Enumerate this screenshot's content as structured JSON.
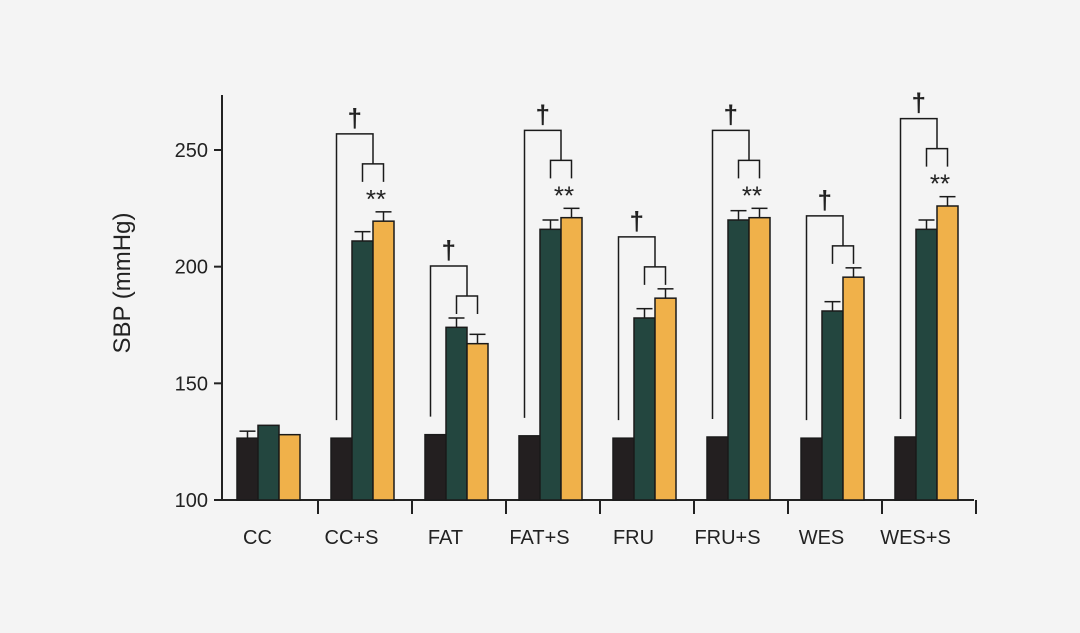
{
  "chart_data": {
    "type": "bar",
    "ylabel": "SBP (mmHg)",
    "xlabel": "",
    "title": "",
    "ylim": [
      100,
      275
    ],
    "yticks": [
      100,
      150,
      200,
      250
    ],
    "categories": [
      "CC",
      "CC+S",
      "FAT",
      "FAT+S",
      "FRU",
      "FRU+S",
      "WES",
      "WES+S"
    ],
    "series": [
      {
        "color": "#231f20",
        "values": [
          126.5,
          126.5,
          128,
          127.5,
          126.5,
          127,
          126.5,
          127
        ],
        "errors": [
          3,
          0,
          0,
          0,
          0,
          0,
          0,
          0
        ]
      },
      {
        "color": "#23463f",
        "values": [
          132,
          211,
          174,
          216,
          178,
          220,
          181,
          216
        ],
        "errors": [
          0,
          4,
          4,
          4,
          4,
          4,
          4,
          4
        ]
      },
      {
        "color": "#f0b14a",
        "values": [
          128,
          219.5,
          167,
          221,
          186.5,
          221,
          195.5,
          226
        ],
        "errors": [
          0,
          4,
          4,
          4,
          4,
          4,
          4,
          4
        ]
      }
    ],
    "annotations": {
      "dagger_symbol": "†",
      "stars_symbol": "**",
      "groups": [
        {
          "category": "CC+S",
          "dagger": true,
          "stars": true
        },
        {
          "category": "FAT",
          "dagger": true,
          "stars": false
        },
        {
          "category": "FAT+S",
          "dagger": true,
          "stars": true
        },
        {
          "category": "FRU",
          "dagger": true,
          "stars": false
        },
        {
          "category": "FRU+S",
          "dagger": true,
          "stars": true
        },
        {
          "category": "WES",
          "dagger": true,
          "stars": false
        },
        {
          "category": "WES+S",
          "dagger": true,
          "stars": true
        }
      ]
    },
    "grid": false,
    "legend": "none"
  }
}
